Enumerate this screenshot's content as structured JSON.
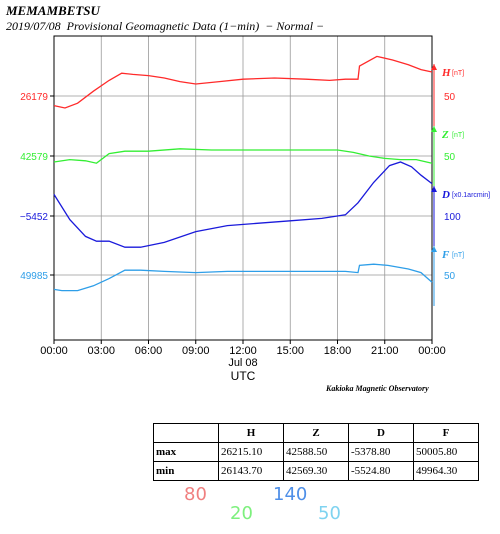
{
  "header": {
    "station": "MEMAMBETSU",
    "subtitle": "2019/07/08  Provisional Geomagnetic Data (1−min)  − Normal −"
  },
  "chart_data": {
    "type": "line",
    "xlabel": "UTC",
    "date_label": "Jul 08",
    "x_ticks": [
      "00:00",
      "03:00",
      "06:00",
      "09:00",
      "12:00",
      "15:00",
      "18:00",
      "21:00",
      "00:00"
    ],
    "x_hours": [
      0,
      3,
      6,
      9,
      12,
      15,
      18,
      21,
      24
    ],
    "grid": true,
    "series": [
      {
        "name": "H",
        "unit": "[nT]",
        "color": "#ff2a2a",
        "left_label": "26179",
        "right_scale": "50",
        "points": [
          [
            0,
            26171
          ],
          [
            0.7,
            26169
          ],
          [
            1.5,
            26173
          ],
          [
            2.5,
            26183
          ],
          [
            3.5,
            26192
          ],
          [
            4.3,
            26198
          ],
          [
            5,
            26197
          ],
          [
            6,
            26196
          ],
          [
            7,
            26194
          ],
          [
            8,
            26191
          ],
          [
            9,
            26189
          ],
          [
            10.5,
            26191
          ],
          [
            12,
            26193
          ],
          [
            14,
            26194
          ],
          [
            16,
            26193
          ],
          [
            17.5,
            26192
          ],
          [
            18.5,
            26193
          ],
          [
            19.3,
            26193
          ],
          [
            19.4,
            26204
          ],
          [
            20.5,
            26212
          ],
          [
            21.5,
            26209
          ],
          [
            22.5,
            26205
          ],
          [
            23.3,
            26201
          ],
          [
            24,
            26199
          ]
        ]
      },
      {
        "name": "Z",
        "unit": "[nT]",
        "color": "#33ee33",
        "left_label": "42579",
        "right_scale": "50",
        "points": [
          [
            0,
            42574
          ],
          [
            1,
            42576
          ],
          [
            2,
            42575
          ],
          [
            2.7,
            42573
          ],
          [
            3.5,
            42581
          ],
          [
            4.5,
            42583
          ],
          [
            6,
            42583
          ],
          [
            8,
            42585
          ],
          [
            10,
            42584
          ],
          [
            12,
            42584
          ],
          [
            14,
            42584
          ],
          [
            16,
            42584
          ],
          [
            18,
            42584
          ],
          [
            19,
            42582
          ],
          [
            20,
            42579
          ],
          [
            21,
            42577
          ],
          [
            22,
            42576
          ],
          [
            23,
            42576
          ],
          [
            24,
            42573
          ]
        ]
      },
      {
        "name": "D",
        "unit": "[x0.1arcmin]",
        "color": "#1a1adb",
        "left_label": "−5452",
        "right_scale": "100",
        "points": [
          [
            0,
            -5434
          ],
          [
            1,
            -5455
          ],
          [
            2,
            -5469
          ],
          [
            2.7,
            -5473
          ],
          [
            3.5,
            -5473
          ],
          [
            4.5,
            -5478
          ],
          [
            5.5,
            -5478
          ],
          [
            7,
            -5474
          ],
          [
            9,
            -5465
          ],
          [
            11,
            -5460
          ],
          [
            13,
            -5458
          ],
          [
            15,
            -5456
          ],
          [
            17,
            -5454
          ],
          [
            18.5,
            -5451
          ],
          [
            19.3,
            -5441
          ],
          [
            20.3,
            -5424
          ],
          [
            21.3,
            -5410
          ],
          [
            22,
            -5407
          ],
          [
            22.7,
            -5411
          ],
          [
            23.3,
            -5418
          ],
          [
            24,
            -5425
          ]
        ]
      },
      {
        "name": "F",
        "unit": "[nT]",
        "color": "#2e9ee8",
        "left_label": "49985",
        "right_scale": "50",
        "points": [
          [
            0,
            49973
          ],
          [
            0.5,
            49972
          ],
          [
            1.5,
            49972
          ],
          [
            2.5,
            49976
          ],
          [
            3.5,
            49982
          ],
          [
            4.5,
            49989
          ],
          [
            5.5,
            49989
          ],
          [
            7,
            49988
          ],
          [
            9,
            49987
          ],
          [
            11,
            49988
          ],
          [
            13,
            49988
          ],
          [
            15,
            49988
          ],
          [
            17,
            49988
          ],
          [
            18.5,
            49988
          ],
          [
            19.3,
            49987
          ],
          [
            19.4,
            49993
          ],
          [
            20.3,
            49994
          ],
          [
            21.2,
            49993
          ],
          [
            22.5,
            49990
          ],
          [
            23.3,
            49987
          ],
          [
            24,
            49979
          ]
        ]
      }
    ]
  },
  "credit": "Kakioka Magnetic Observatory",
  "stats": {
    "headers": [
      "",
      "H",
      "Z",
      "D",
      "F"
    ],
    "rows": [
      [
        "max",
        "26215.10",
        "42588.50",
        "-5378.80",
        "50005.80"
      ],
      [
        "min",
        "26143.70",
        "42569.30",
        "-5524.80",
        "49964.30"
      ]
    ]
  },
  "handwritten": {
    "h": "80",
    "z": "20",
    "d": "140",
    "f": "50",
    "colors": {
      "h": "#f08080",
      "z": "#7df07d",
      "d": "#4e8fe8",
      "f": "#7fd3f0"
    }
  }
}
